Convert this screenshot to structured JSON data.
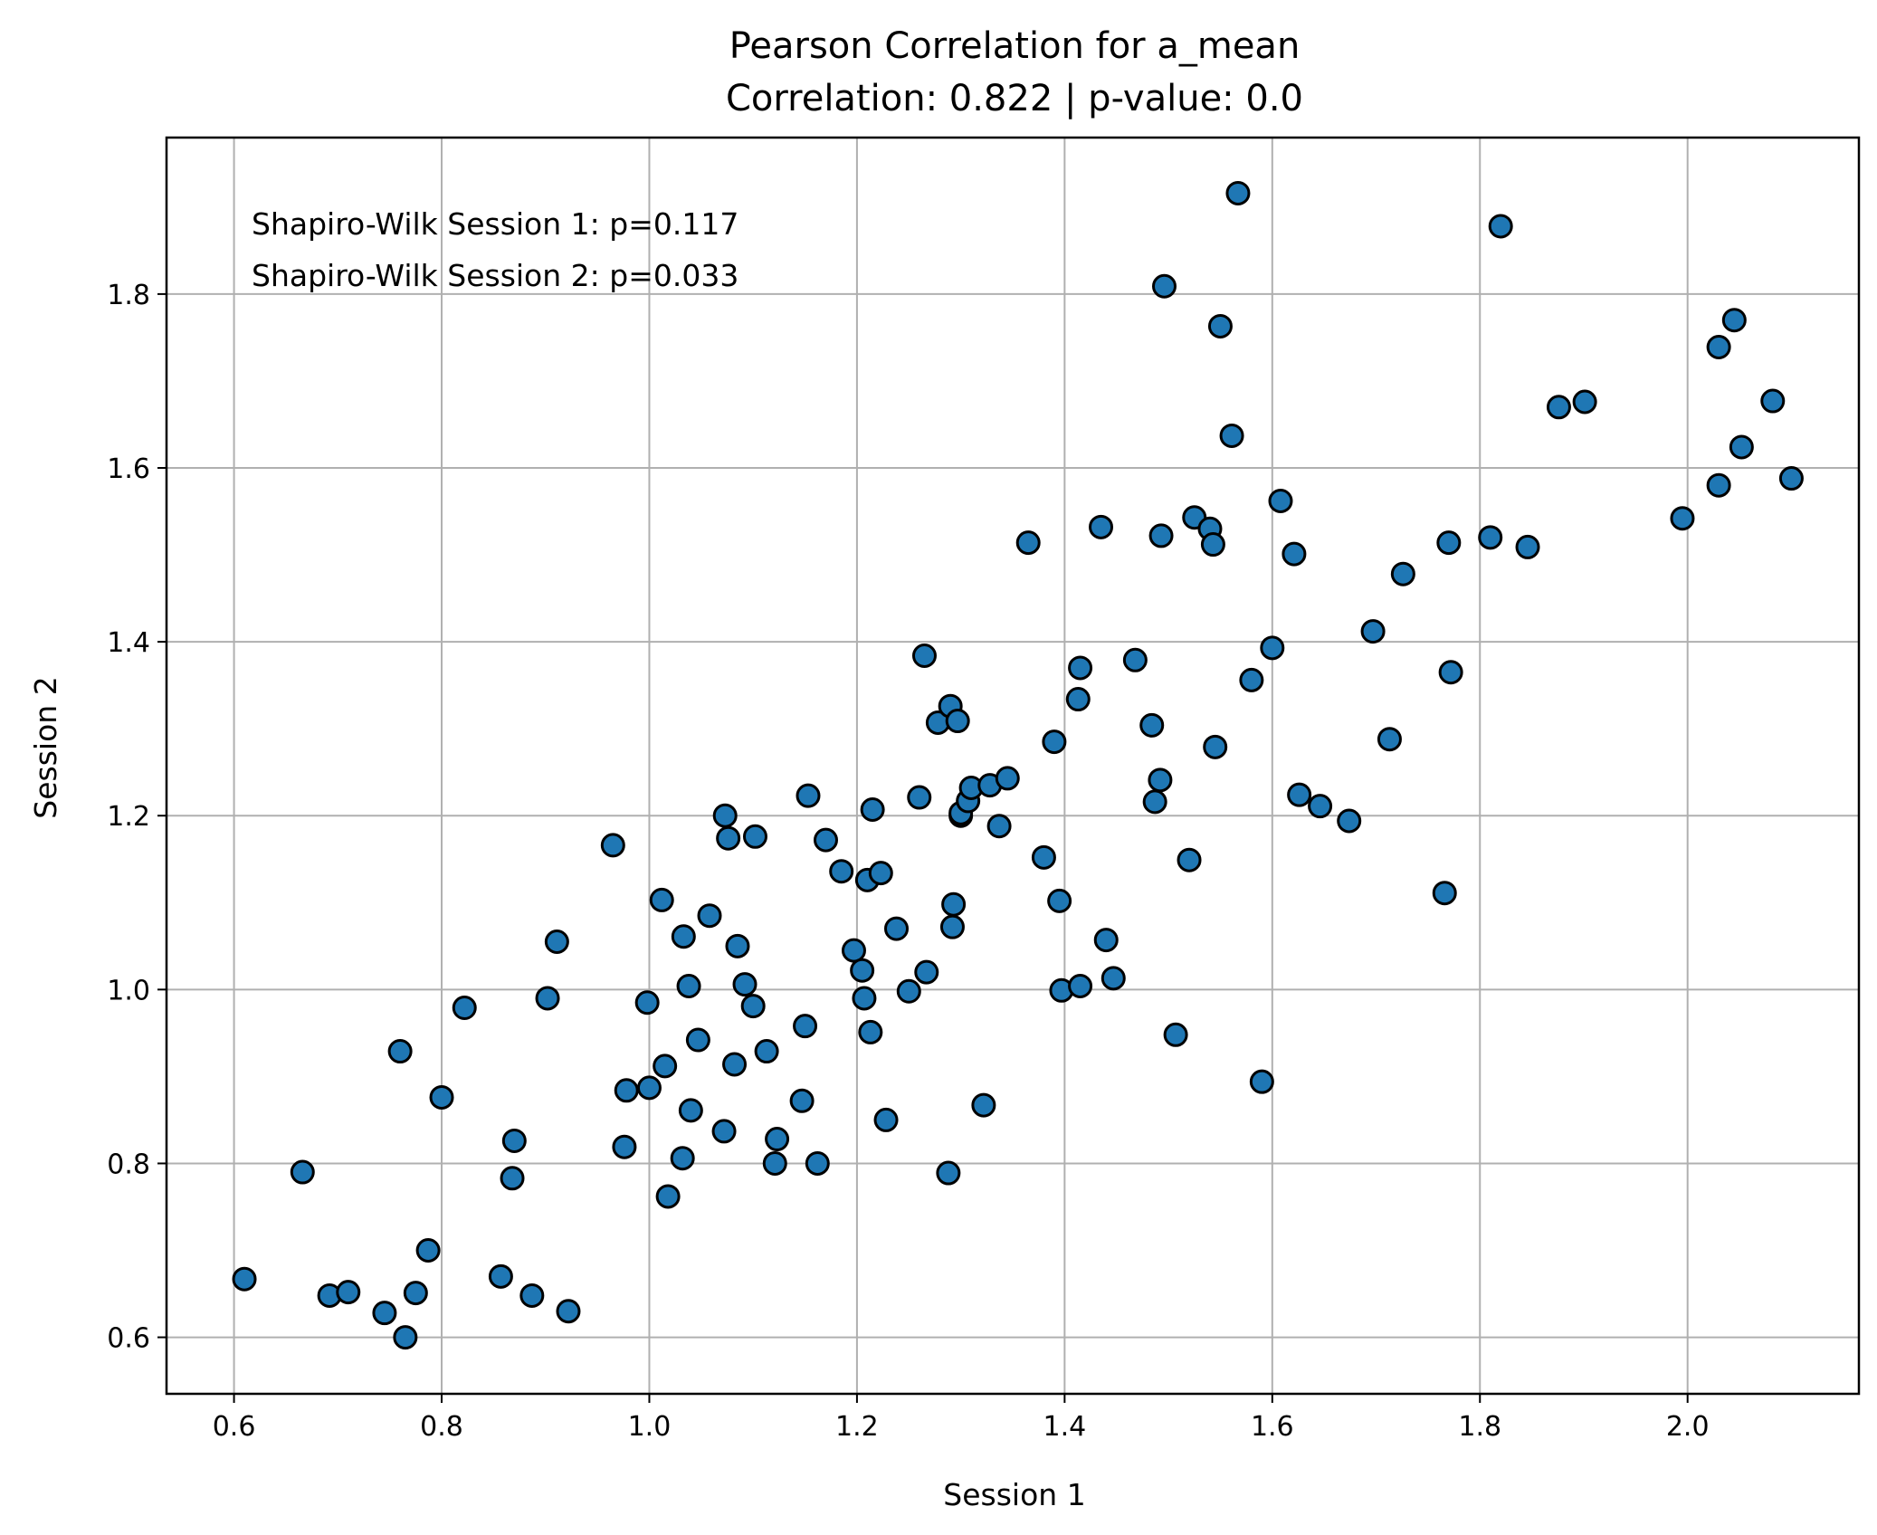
{
  "chart_data": {
    "type": "scatter",
    "title": "Pearson Correlation for a_mean",
    "subtitle": "Correlation: 0.822 | p-value: 0.0",
    "xlabel": "Session 1",
    "ylabel": "Session 2",
    "xlim": [
      0.535,
      2.165
    ],
    "ylim": [
      0.535,
      1.98
    ],
    "x_ticks": [
      0.6,
      0.8,
      1.0,
      1.2,
      1.4,
      1.6,
      1.8,
      2.0
    ],
    "x_tick_labels": [
      "0.6",
      "0.8",
      "1.0",
      "1.2",
      "1.4",
      "1.6",
      "1.8",
      "2.0"
    ],
    "y_ticks": [
      0.6,
      0.8,
      1.0,
      1.2,
      1.4,
      1.6,
      1.8
    ],
    "y_tick_labels": [
      "0.6",
      "0.8",
      "1.0",
      "1.2",
      "1.4",
      "1.6",
      "1.8"
    ],
    "grid": true,
    "annotations": [
      "Shapiro-Wilk Session 1: p=0.117",
      "Shapiro-Wilk Session 2: p=0.033"
    ],
    "marker_color": "#1f77b4",
    "marker_edge_color": "#000000",
    "points": [
      [
        0.61,
        0.667
      ],
      [
        0.666,
        0.79
      ],
      [
        0.692,
        0.648
      ],
      [
        0.71,
        0.652
      ],
      [
        0.745,
        0.628
      ],
      [
        0.765,
        0.6
      ],
      [
        0.775,
        0.651
      ],
      [
        0.787,
        0.7
      ],
      [
        0.76,
        0.929
      ],
      [
        0.8,
        0.876
      ],
      [
        0.822,
        0.979
      ],
      [
        0.857,
        0.67
      ],
      [
        0.868,
        0.783
      ],
      [
        0.87,
        0.826
      ],
      [
        0.887,
        0.648
      ],
      [
        0.902,
        0.99
      ],
      [
        0.911,
        1.055
      ],
      [
        0.922,
        0.63
      ],
      [
        0.965,
        1.166
      ],
      [
        0.976,
        0.819
      ],
      [
        0.978,
        0.884
      ],
      [
        0.998,
        0.985
      ],
      [
        1.0,
        0.887
      ],
      [
        1.012,
        1.103
      ],
      [
        1.015,
        0.912
      ],
      [
        1.018,
        0.762
      ],
      [
        1.032,
        0.806
      ],
      [
        1.033,
        1.061
      ],
      [
        1.038,
        1.004
      ],
      [
        1.04,
        0.861
      ],
      [
        1.047,
        0.942
      ],
      [
        1.058,
        1.085
      ],
      [
        1.072,
        0.837
      ],
      [
        1.073,
        1.2
      ],
      [
        1.076,
        1.174
      ],
      [
        1.082,
        0.914
      ],
      [
        1.085,
        1.05
      ],
      [
        1.092,
        1.006
      ],
      [
        1.1,
        0.981
      ],
      [
        1.102,
        1.176
      ],
      [
        1.113,
        0.929
      ],
      [
        1.121,
        0.8
      ],
      [
        1.123,
        0.828
      ],
      [
        1.147,
        0.872
      ],
      [
        1.15,
        0.958
      ],
      [
        1.153,
        1.223
      ],
      [
        1.162,
        0.8
      ],
      [
        1.17,
        1.172
      ],
      [
        1.185,
        1.136
      ],
      [
        1.197,
        1.045
      ],
      [
        1.205,
        1.022
      ],
      [
        1.207,
        0.99
      ],
      [
        1.21,
        1.126
      ],
      [
        1.213,
        0.951
      ],
      [
        1.215,
        1.207
      ],
      [
        1.223,
        1.134
      ],
      [
        1.228,
        0.85
      ],
      [
        1.238,
        1.07
      ],
      [
        1.25,
        0.998
      ],
      [
        1.26,
        1.221
      ],
      [
        1.265,
        1.384
      ],
      [
        1.267,
        1.02
      ],
      [
        1.278,
        1.307
      ],
      [
        1.288,
        0.789
      ],
      [
        1.29,
        1.326
      ],
      [
        1.292,
        1.072
      ],
      [
        1.293,
        1.098
      ],
      [
        1.297,
        1.309
      ],
      [
        1.3,
        1.2
      ],
      [
        1.3,
        1.203
      ],
      [
        1.307,
        1.217
      ],
      [
        1.31,
        1.232
      ],
      [
        1.322,
        0.867
      ],
      [
        1.328,
        1.235
      ],
      [
        1.337,
        1.188
      ],
      [
        1.345,
        1.243
      ],
      [
        1.365,
        1.514
      ],
      [
        1.38,
        1.152
      ],
      [
        1.39,
        1.285
      ],
      [
        1.395,
        1.102
      ],
      [
        1.397,
        0.999
      ],
      [
        1.413,
        1.334
      ],
      [
        1.415,
        1.37
      ],
      [
        1.415,
        1.004
      ],
      [
        1.435,
        1.532
      ],
      [
        1.44,
        1.057
      ],
      [
        1.447,
        1.013
      ],
      [
        1.468,
        1.379
      ],
      [
        1.484,
        1.304
      ],
      [
        1.487,
        1.216
      ],
      [
        1.492,
        1.241
      ],
      [
        1.493,
        1.522
      ],
      [
        1.496,
        1.809
      ],
      [
        1.507,
        0.948
      ],
      [
        1.52,
        1.149
      ],
      [
        1.525,
        1.543
      ],
      [
        1.54,
        1.53
      ],
      [
        1.543,
        1.512
      ],
      [
        1.545,
        1.279
      ],
      [
        1.55,
        1.763
      ],
      [
        1.561,
        1.637
      ],
      [
        1.567,
        1.916
      ],
      [
        1.58,
        1.356
      ],
      [
        1.59,
        0.894
      ],
      [
        1.6,
        1.393
      ],
      [
        1.608,
        1.562
      ],
      [
        1.621,
        1.501
      ],
      [
        1.626,
        1.224
      ],
      [
        1.646,
        1.211
      ],
      [
        1.674,
        1.194
      ],
      [
        1.697,
        1.412
      ],
      [
        1.713,
        1.288
      ],
      [
        1.726,
        1.478
      ],
      [
        1.766,
        1.111
      ],
      [
        1.77,
        1.514
      ],
      [
        1.772,
        1.365
      ],
      [
        1.81,
        1.52
      ],
      [
        1.82,
        1.878
      ],
      [
        1.846,
        1.509
      ],
      [
        1.876,
        1.67
      ],
      [
        1.901,
        1.676
      ],
      [
        1.995,
        1.542
      ],
      [
        2.03,
        1.58
      ],
      [
        2.03,
        1.739
      ],
      [
        2.045,
        1.77
      ],
      [
        2.052,
        1.624
      ],
      [
        2.082,
        1.677
      ],
      [
        2.1,
        1.588
      ]
    ]
  }
}
